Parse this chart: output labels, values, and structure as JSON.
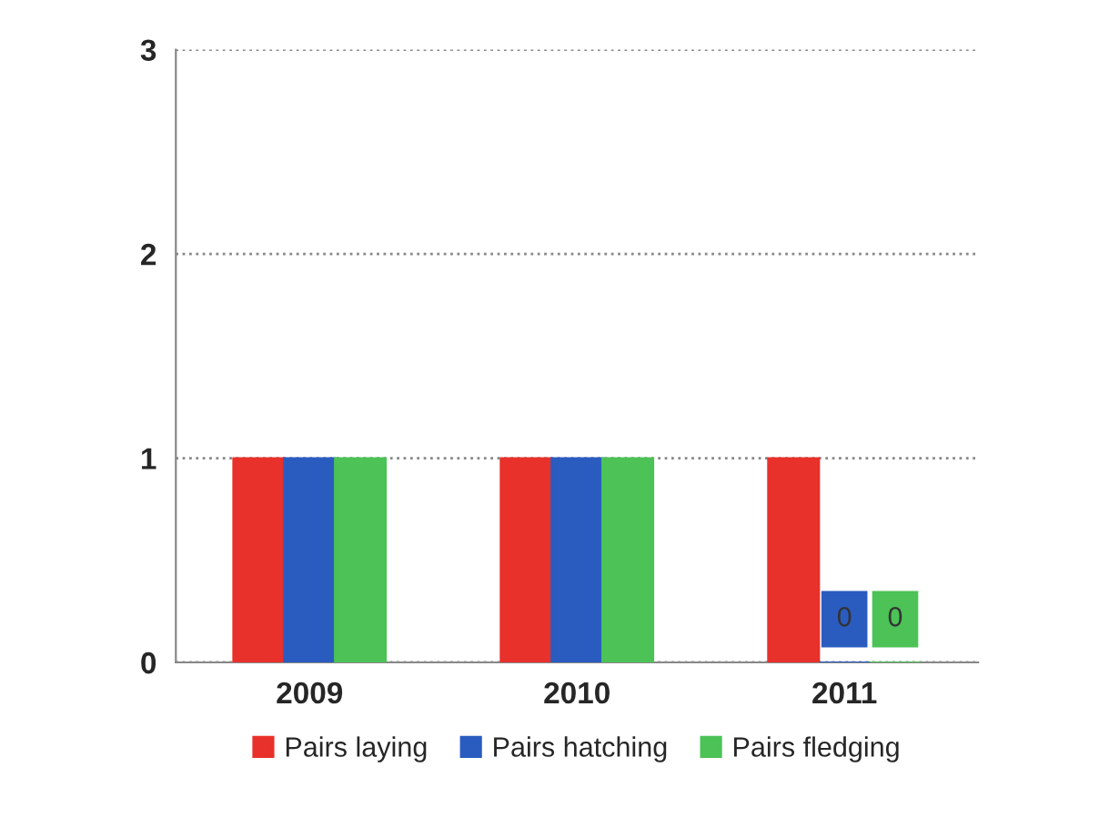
{
  "chart_data": {
    "type": "bar",
    "categories": [
      "2009",
      "2010",
      "2011"
    ],
    "series": [
      {
        "name": "Pairs laying",
        "color": "#e8312a",
        "values": [
          1,
          1,
          1
        ]
      },
      {
        "name": "Pairs hatching",
        "color": "#2a5cc0",
        "values": [
          1,
          1,
          0
        ],
        "value_labels": [
          null,
          null,
          "0"
        ]
      },
      {
        "name": "Pairs fledging",
        "color": "#4cc257",
        "values": [
          1,
          1,
          0
        ],
        "value_labels": [
          null,
          null,
          "0"
        ]
      }
    ],
    "ylim": [
      0,
      3
    ],
    "yticks": [
      0,
      1,
      2,
      3
    ],
    "grid": "y",
    "legend": "bottom"
  }
}
